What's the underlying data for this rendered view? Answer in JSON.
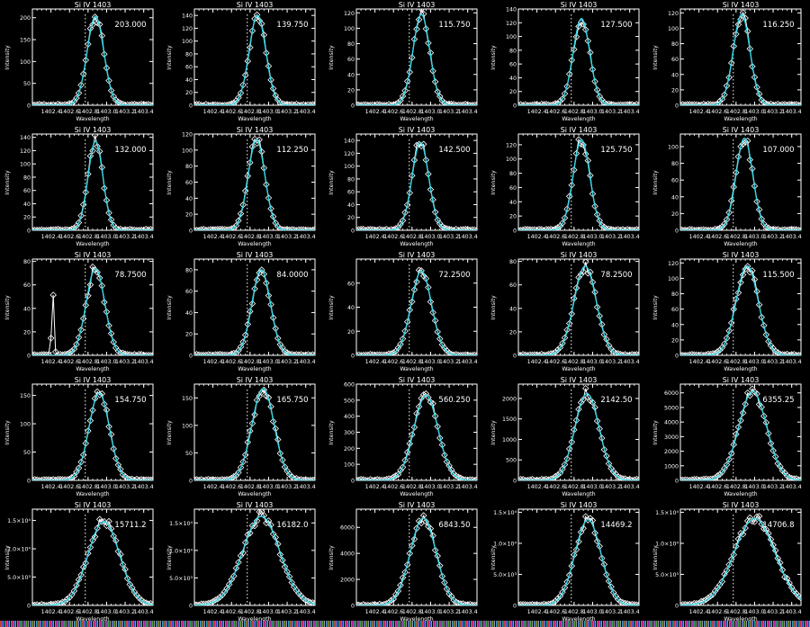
{
  "chart_data": {
    "type": "line",
    "layout": {
      "rows": 5,
      "cols": 5,
      "background": "#000000",
      "axis_color": "#ffffff",
      "fit_color": "#33d6e6",
      "data_color": "#ffffff"
    },
    "common": {
      "title": "Si IV 1403",
      "xlabel": "Wavelength",
      "ylabel": "Intensity",
      "xlim": [
        1402.2,
        1403.5
      ],
      "xticks": [
        "1402.4",
        "1402.6",
        "1402.8",
        "1403.0",
        "1403.2",
        "1403.4"
      ],
      "xtick_values": [
        1402.4,
        1402.6,
        1402.8,
        1403.0,
        1403.2,
        1403.4
      ],
      "reference_line_x": 1402.77,
      "series": [
        {
          "name": "observed",
          "style": "white line with diamond markers"
        },
        {
          "name": "gaussian fit",
          "style": "cyan line"
        }
      ]
    },
    "panels": [
      {
        "annotation": "203.000",
        "peak": 203,
        "center": 1402.88,
        "width": 0.09,
        "ylim": [
          0,
          220
        ],
        "yticks": [
          "0",
          "50",
          "100",
          "150",
          "200"
        ],
        "ytick_values": [
          0,
          50,
          100,
          150,
          200
        ]
      },
      {
        "annotation": "139.750",
        "peak": 140,
        "center": 1402.88,
        "width": 0.09,
        "ylim": [
          0,
          150
        ],
        "yticks": [
          "0",
          "20",
          "40",
          "60",
          "80",
          "100",
          "120",
          "140"
        ],
        "ytick_values": [
          0,
          20,
          40,
          60,
          80,
          100,
          120,
          140
        ]
      },
      {
        "annotation": "115.750",
        "peak": 118,
        "center": 1402.9,
        "width": 0.09,
        "ylim": [
          0,
          125
        ],
        "yticks": [
          "0",
          "20",
          "40",
          "60",
          "80",
          "100",
          "120"
        ],
        "ytick_values": [
          0,
          20,
          40,
          60,
          80,
          100,
          120
        ]
      },
      {
        "annotation": "127.500",
        "peak": 126,
        "center": 1402.88,
        "width": 0.09,
        "ylim": [
          0,
          140
        ],
        "yticks": [
          "0",
          "20",
          "40",
          "60",
          "80",
          "100",
          "120",
          "140"
        ],
        "ytick_values": [
          0,
          20,
          40,
          60,
          80,
          100,
          120,
          140
        ]
      },
      {
        "annotation": "116.250",
        "peak": 118,
        "center": 1402.86,
        "width": 0.09,
        "ylim": [
          0,
          125
        ],
        "yticks": [
          "0",
          "20",
          "40",
          "60",
          "80",
          "100",
          "120"
        ],
        "ytick_values": [
          0,
          20,
          40,
          60,
          80,
          100,
          120
        ]
      },
      {
        "annotation": "132.000",
        "peak": 134,
        "center": 1402.88,
        "width": 0.08,
        "ylim": [
          0,
          145
        ],
        "yticks": [
          "0",
          "20",
          "40",
          "60",
          "80",
          "100",
          "120",
          "140"
        ],
        "ytick_values": [
          0,
          20,
          40,
          60,
          80,
          100,
          120,
          140
        ]
      },
      {
        "annotation": "112.250",
        "peak": 113,
        "center": 1402.87,
        "width": 0.09,
        "ylim": [
          0,
          120
        ],
        "yticks": [
          "0",
          "20",
          "40",
          "60",
          "80",
          "100",
          "120"
        ],
        "ytick_values": [
          0,
          20,
          40,
          60,
          80,
          100,
          120
        ]
      },
      {
        "annotation": "142.500",
        "peak": 137,
        "center": 1402.89,
        "width": 0.09,
        "ylim": [
          0,
          150
        ],
        "yticks": [
          "0",
          "20",
          "40",
          "60",
          "80",
          "100",
          "120",
          "140"
        ],
        "ytick_values": [
          0,
          20,
          40,
          60,
          80,
          100,
          120,
          140
        ]
      },
      {
        "annotation": "125.750",
        "peak": 127,
        "center": 1402.88,
        "width": 0.09,
        "ylim": [
          0,
          135
        ],
        "yticks": [
          "0",
          "20",
          "40",
          "60",
          "80",
          "100",
          "120"
        ],
        "ytick_values": [
          0,
          20,
          40,
          60,
          80,
          100,
          120
        ]
      },
      {
        "annotation": "107.000",
        "peak": 110,
        "center": 1402.89,
        "width": 0.09,
        "ylim": [
          0,
          115
        ],
        "yticks": [
          "0",
          "20",
          "40",
          "60",
          "80",
          "100"
        ],
        "ytick_values": [
          0,
          20,
          40,
          60,
          80,
          100
        ]
      },
      {
        "annotation": "78.7500",
        "peak": 74,
        "center": 1402.88,
        "width": 0.1,
        "ylim": [
          0,
          82
        ],
        "yticks": [
          "0",
          "20",
          "40",
          "60",
          "80"
        ],
        "ytick_values": [
          0,
          20,
          40,
          60,
          80
        ],
        "extra_spike": {
          "x": 1402.42,
          "y": 55
        }
      },
      {
        "annotation": "84.0000",
        "peak": 80,
        "center": 1402.92,
        "width": 0.1,
        "ylim": [
          0,
          90
        ],
        "yticks": [
          "0",
          "20",
          "40",
          "60",
          "80"
        ],
        "ytick_values": [
          0,
          20,
          40,
          60,
          80
        ]
      },
      {
        "annotation": "72.2500",
        "peak": 70,
        "center": 1402.9,
        "width": 0.11,
        "ylim": [
          0,
          80
        ],
        "yticks": [
          "0",
          "20",
          "40",
          "60"
        ],
        "ytick_values": [
          0,
          20,
          40,
          60
        ]
      },
      {
        "annotation": "78.2500",
        "peak": 76,
        "center": 1402.92,
        "width": 0.12,
        "ylim": [
          0,
          82
        ],
        "yticks": [
          "0",
          "20",
          "40",
          "60",
          "80"
        ],
        "ytick_values": [
          0,
          20,
          40,
          60,
          80
        ]
      },
      {
        "annotation": "115.500",
        "peak": 116,
        "center": 1402.92,
        "width": 0.12,
        "ylim": [
          0,
          125
        ],
        "yticks": [
          "0",
          "20",
          "40",
          "60",
          "80",
          "100",
          "120"
        ],
        "ytick_values": [
          0,
          20,
          40,
          60,
          80,
          100,
          120
        ]
      },
      {
        "annotation": "154.750",
        "peak": 154,
        "center": 1402.92,
        "width": 0.11,
        "ylim": [
          0,
          170
        ],
        "yticks": [
          "0",
          "50",
          "100",
          "150"
        ],
        "ytick_values": [
          0,
          50,
          100,
          150
        ]
      },
      {
        "annotation": "165.750",
        "peak": 167,
        "center": 1402.94,
        "width": 0.12,
        "ylim": [
          0,
          175
        ],
        "yticks": [
          "0",
          "50",
          "100",
          "150"
        ],
        "ytick_values": [
          0,
          50,
          100,
          150
        ]
      },
      {
        "annotation": "560.250",
        "peak": 530,
        "center": 1402.95,
        "width": 0.13,
        "ylim": [
          0,
          600
        ],
        "yticks": [
          "0",
          "100",
          "200",
          "300",
          "400",
          "500",
          "600"
        ],
        "ytick_values": [
          0,
          100,
          200,
          300,
          400,
          500,
          600
        ]
      },
      {
        "annotation": "2142.50",
        "peak": 2120,
        "center": 1402.94,
        "width": 0.13,
        "ylim": [
          0,
          2350
        ],
        "yticks": [
          "0",
          "500",
          "1000",
          "1500",
          "2000"
        ],
        "ytick_values": [
          0,
          500,
          1000,
          1500,
          2000
        ]
      },
      {
        "annotation": "6355.25",
        "peak": 6100,
        "center": 1402.98,
        "width": 0.15,
        "ylim": [
          0,
          6600
        ],
        "yticks": [
          "0",
          "1000",
          "2000",
          "3000",
          "4000",
          "5000",
          "6000"
        ],
        "ytick_values": [
          0,
          1000,
          2000,
          3000,
          4000,
          5000,
          6000
        ]
      },
      {
        "annotation": "15711.2",
        "peak": 14800,
        "center": 1402.97,
        "width": 0.17,
        "ylim": [
          0,
          17000
        ],
        "yticks": [
          "0",
          "5.0×10³",
          "1.0×10⁴",
          "1.5×10⁴"
        ],
        "ytick_values": [
          0,
          5000,
          10000,
          15000
        ]
      },
      {
        "annotation": "16182.0",
        "peak": 16200,
        "center": 1402.92,
        "width": 0.2,
        "ylim": [
          0,
          17500
        ],
        "yticks": [
          "0",
          "5.0×10³",
          "1.0×10⁴",
          "1.5×10⁴"
        ],
        "ytick_values": [
          0,
          5000,
          10000,
          15000
        ]
      },
      {
        "annotation": "6843.50",
        "peak": 6700,
        "center": 1402.92,
        "width": 0.14,
        "ylim": [
          0,
          7400
        ],
        "yticks": [
          "0",
          "2000",
          "4000",
          "6000"
        ],
        "ytick_values": [
          0,
          2000,
          4000,
          6000
        ]
      },
      {
        "annotation": "14469.2",
        "peak": 13800,
        "center": 1402.95,
        "width": 0.14,
        "ylim": [
          0,
          15500
        ],
        "yticks": [
          "0",
          "5.0×10³",
          "1.0×10⁴",
          "1.5×10⁴"
        ],
        "ytick_values": [
          0,
          5000,
          10000,
          15000
        ]
      },
      {
        "annotation": "14706.8",
        "peak": 14000,
        "center": 1403.0,
        "width": 0.22,
        "ylim": [
          0,
          15500
        ],
        "yticks": [
          "0",
          "5.0×10³",
          "1.0×10⁴",
          "1.5×10⁴"
        ],
        "ytick_values": [
          0,
          5000,
          10000,
          15000
        ]
      }
    ]
  }
}
